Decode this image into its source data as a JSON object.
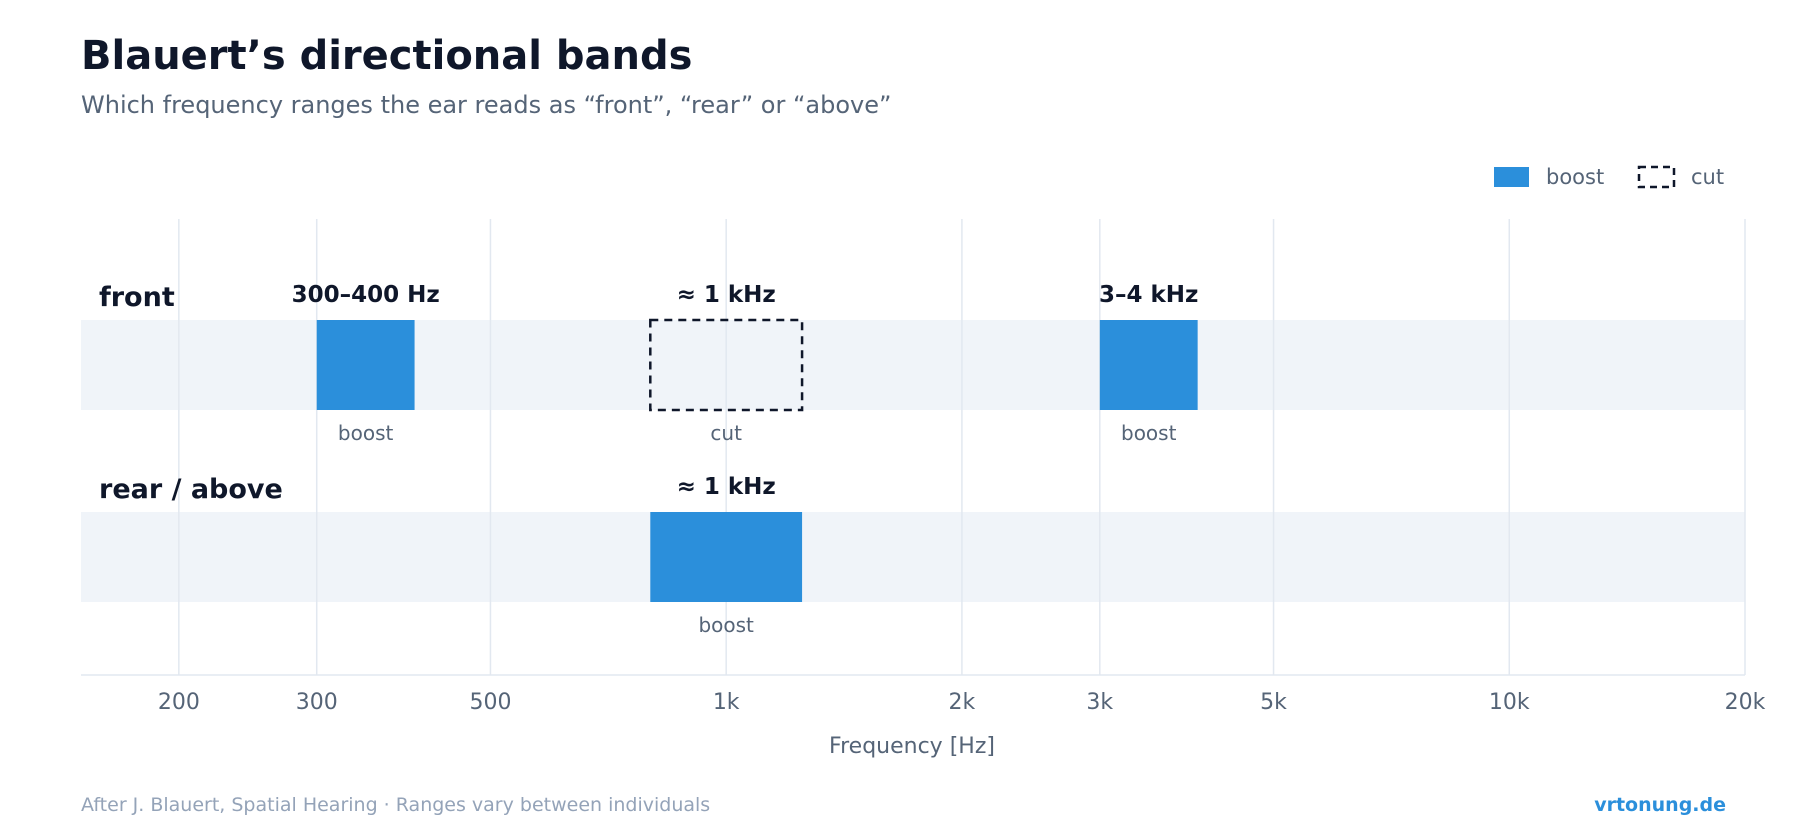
{
  "colors": {
    "boost": "#2b8fdb",
    "cut_stroke": "#0f172a",
    "row_band": "#f0f4f9",
    "grid": "#e2e8f0",
    "title": "#0f172a",
    "muted": "#556477",
    "footer": "#94a3b8",
    "brand": "#2b8fdb"
  },
  "header": {
    "title": "Blauert’s directional bands",
    "subtitle": "Which frequency ranges the ear reads as “front”, “rear” or “above”"
  },
  "legend": {
    "placement": "top-right",
    "items": [
      {
        "label": "boost",
        "style": "filled"
      },
      {
        "label": "cut",
        "style": "dashed"
      }
    ]
  },
  "chart_data": {
    "type": "bar",
    "orientation": "horizontal-ranges",
    "xscale": "log",
    "xlabel": "Frequency [Hz]",
    "xlim": [
      150,
      20000
    ],
    "xticks": [
      {
        "value": 200,
        "label": "200"
      },
      {
        "value": 300,
        "label": "300"
      },
      {
        "value": 500,
        "label": "500"
      },
      {
        "value": 1000,
        "label": "1k"
      },
      {
        "value": 2000,
        "label": "2k"
      },
      {
        "value": 3000,
        "label": "3k"
      },
      {
        "value": 5000,
        "label": "5k"
      },
      {
        "value": 10000,
        "label": "10k"
      },
      {
        "value": 20000,
        "label": "20k"
      }
    ],
    "grid": true,
    "rows": [
      {
        "name": "front",
        "bands": [
          {
            "from": 300,
            "to": 400,
            "label": "300–400 Hz",
            "kind": "boost"
          },
          {
            "from": 800,
            "to": 1250,
            "label": "≈ 1 kHz",
            "kind": "cut"
          },
          {
            "from": 3000,
            "to": 4000,
            "label": "3–4 kHz",
            "kind": "boost"
          }
        ]
      },
      {
        "name": "rear / above",
        "bands": [
          {
            "from": 800,
            "to": 1250,
            "label": "≈ 1 kHz",
            "kind": "boost"
          }
        ]
      }
    ]
  },
  "footer": {
    "source": "After J. Blauert, Spatial Hearing · Ranges vary between individuals",
    "brand": "vrtonung.de"
  }
}
